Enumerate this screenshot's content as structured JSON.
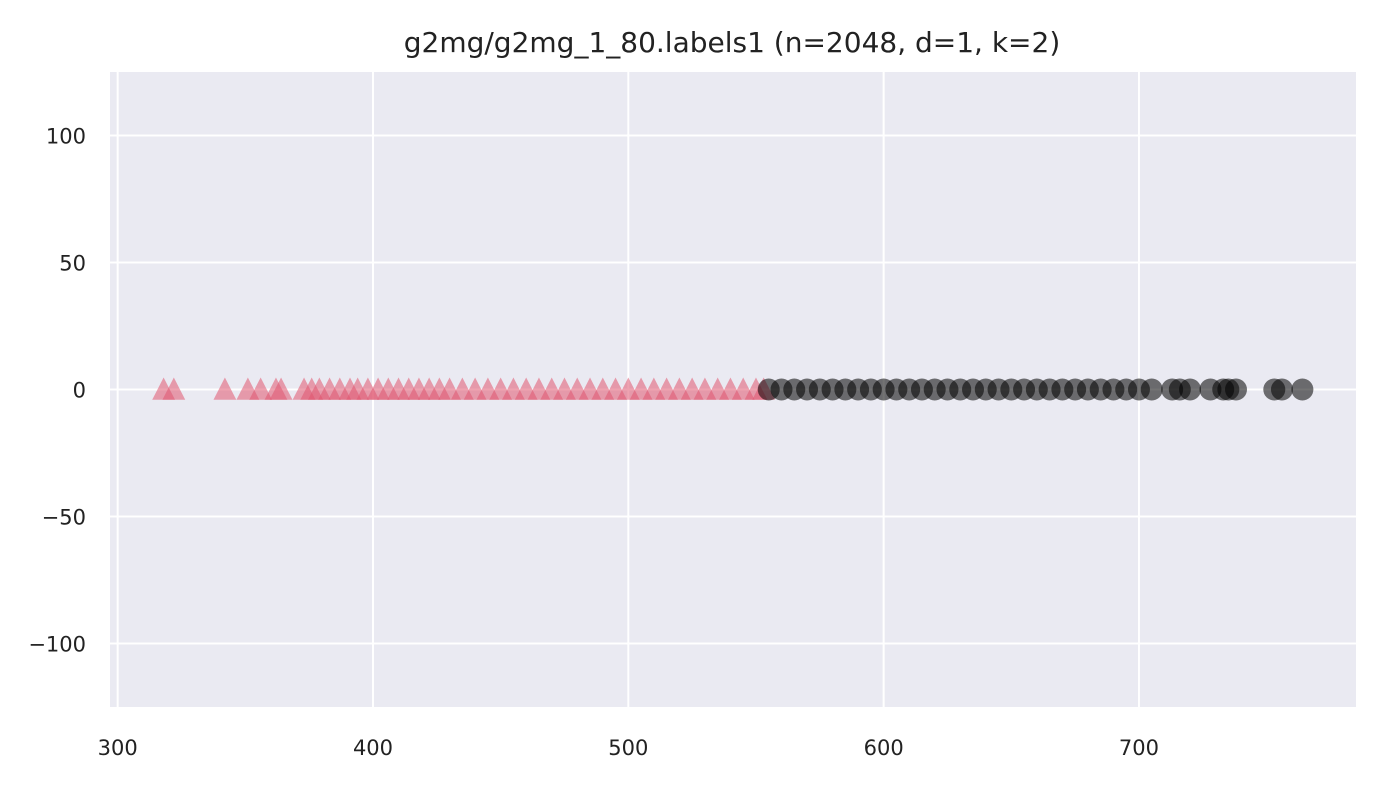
{
  "chart_data": {
    "type": "scatter",
    "title": "g2mg/g2mg_1_80.labels1 (n=2048, d=1, k=2)",
    "xlabel": "",
    "ylabel": "",
    "xlim": [
      297,
      785
    ],
    "ylim": [
      -125,
      125
    ],
    "x_ticks": [
      300,
      400,
      500,
      600,
      700
    ],
    "x_tick_labels": [
      "300",
      "400",
      "500",
      "600",
      "700"
    ],
    "y_ticks": [
      100,
      50,
      0,
      -50,
      -100
    ],
    "y_tick_labels": [
      "100",
      "50",
      "0",
      "−50",
      "−100"
    ],
    "grid": true,
    "legend": "none",
    "colors": {
      "background": "#eaeaf2",
      "grid": "#ffffff",
      "cluster_a": "#e05570",
      "cluster_b": "#000000"
    },
    "series": [
      {
        "marker": "triangle",
        "color": "#e05570",
        "x": [
          318,
          322,
          342,
          351,
          356,
          362,
          364,
          373,
          376,
          379,
          383,
          387,
          391,
          394,
          398,
          402,
          406,
          410,
          414,
          418,
          422,
          426,
          430,
          435,
          440,
          445,
          450,
          455,
          460,
          465,
          470,
          475,
          480,
          485,
          490,
          495,
          500,
          505,
          510,
          515,
          520,
          525,
          530,
          535,
          540,
          545,
          550,
          553
        ],
        "y": [
          0,
          0,
          0,
          0,
          0,
          0,
          0,
          0,
          0,
          0,
          0,
          0,
          0,
          0,
          0,
          0,
          0,
          0,
          0,
          0,
          0,
          0,
          0,
          0,
          0,
          0,
          0,
          0,
          0,
          0,
          0,
          0,
          0,
          0,
          0,
          0,
          0,
          0,
          0,
          0,
          0,
          0,
          0,
          0,
          0,
          0,
          0,
          0
        ]
      },
      {
        "marker": "circle",
        "color": "#000000",
        "x": [
          555,
          560,
          565,
          570,
          575,
          580,
          585,
          590,
          595,
          600,
          605,
          610,
          615,
          620,
          625,
          630,
          635,
          640,
          645,
          650,
          655,
          660,
          665,
          670,
          675,
          680,
          685,
          690,
          695,
          700,
          705,
          713,
          716,
          720,
          728,
          733,
          735,
          738,
          753,
          756,
          764
        ],
        "y": [
          0,
          0,
          0,
          0,
          0,
          0,
          0,
          0,
          0,
          0,
          0,
          0,
          0,
          0,
          0,
          0,
          0,
          0,
          0,
          0,
          0,
          0,
          0,
          0,
          0,
          0,
          0,
          0,
          0,
          0,
          0,
          0,
          0,
          0,
          0,
          0,
          0,
          0,
          0,
          0,
          0
        ]
      }
    ]
  }
}
